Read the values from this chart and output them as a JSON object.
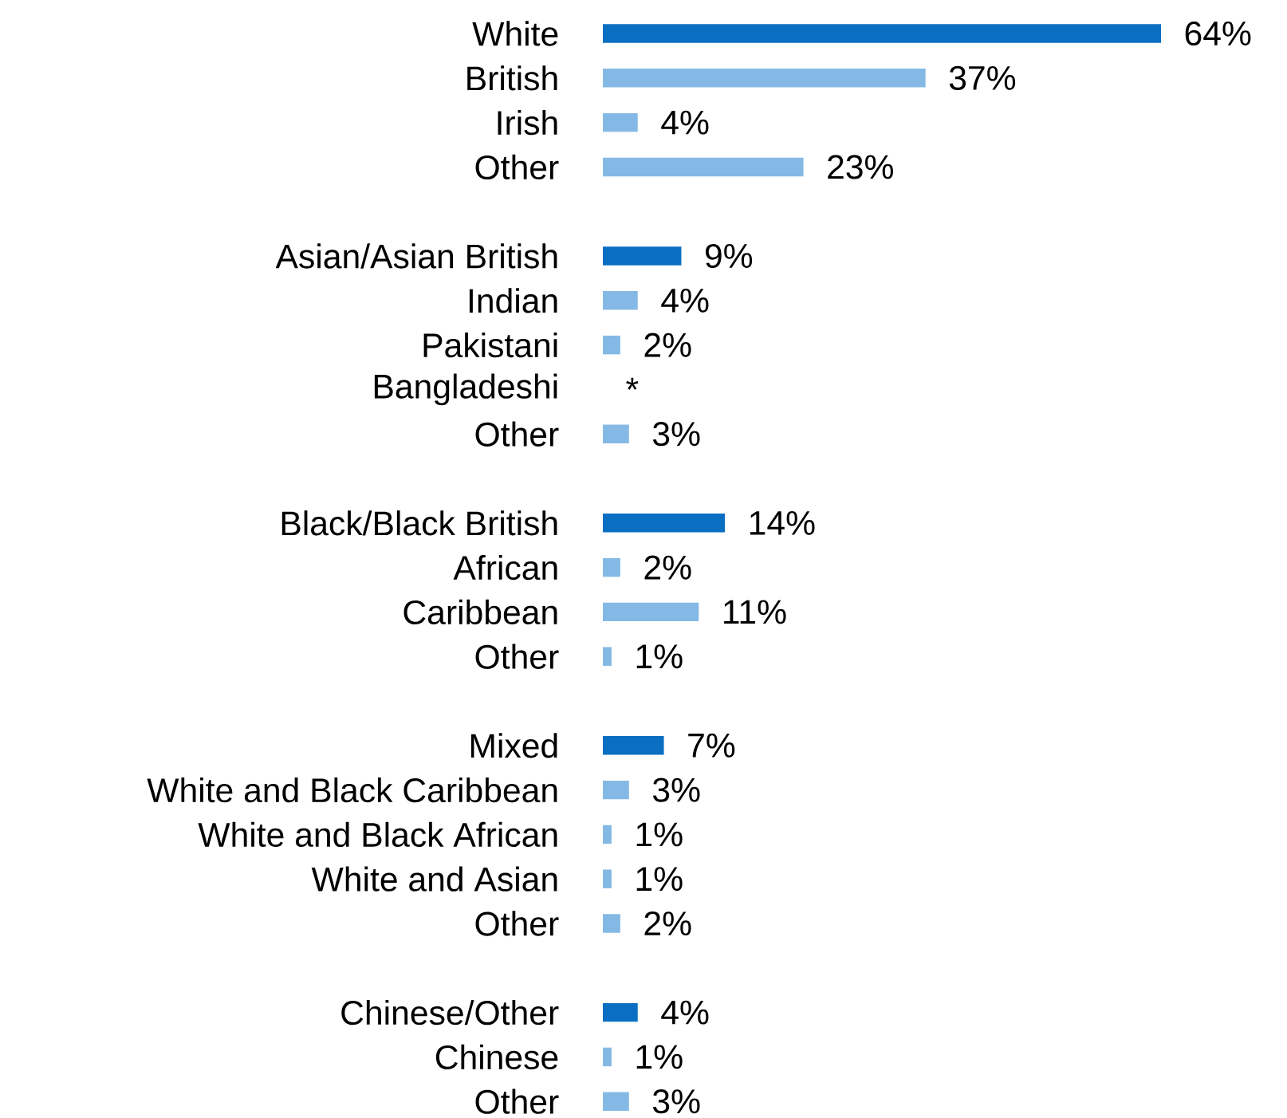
{
  "chart_data": {
    "type": "bar",
    "orientation": "horizontal",
    "tick_labels": "y",
    "categories": [
      "White",
      "British",
      "Irish",
      "Other",
      null,
      "Asian/Asian British",
      "Indian",
      "Pakistani",
      "Bangladeshi",
      "Other",
      null,
      "Black/Black British",
      "African",
      "Caribbean",
      "Other",
      null,
      "Mixed",
      "White and Black Caribbean",
      "White and Black African",
      "White and Asian",
      "Other",
      null,
      "Chinese/Other",
      "Chinese",
      "Other"
    ],
    "values": [
      64,
      37,
      4,
      23,
      null,
      9,
      4,
      2,
      0,
      3,
      null,
      14,
      2,
      11,
      1,
      null,
      7,
      3,
      1,
      1,
      2,
      null,
      4,
      1,
      3
    ],
    "value_labels": [
      "64%",
      "37%",
      "4%",
      "23%",
      null,
      "9%",
      "4%",
      "2%",
      "*",
      "3%",
      null,
      "14%",
      "2%",
      "11%",
      "1%",
      null,
      "7%",
      "3%",
      "1%",
      "1%",
      "2%",
      null,
      "4%",
      "1%",
      "3%"
    ],
    "colors": [
      "#0a6fc2",
      "#85b9e5",
      "#85b9e5",
      "#85b9e5",
      null,
      "#0a6fc2",
      "#85b9e5",
      "#85b9e5",
      "#85b9e5",
      "#85b9e5",
      null,
      "#0a6fc2",
      "#85b9e5",
      "#85b9e5",
      "#85b9e5",
      null,
      "#0a6fc2",
      "#85b9e5",
      "#85b9e5",
      "#85b9e5",
      "#85b9e5",
      null,
      "#0a6fc2",
      "#85b9e5",
      "#85b9e5"
    ]
  }
}
